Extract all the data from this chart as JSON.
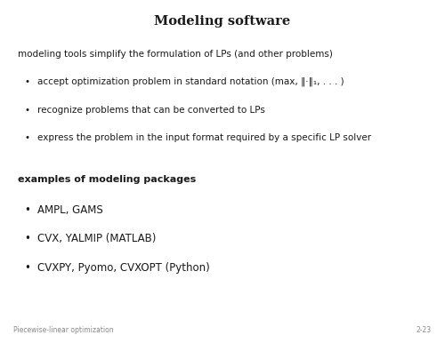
{
  "title": "Modeling software",
  "background_color": "#ffffff",
  "text_color": "#1a1a1a",
  "intro_line": "modeling tools simplify the formulation of LPs (and other problems)",
  "bullets_1": [
    "accept optimization problem in standard notation (max, ‖·‖₁, . . . )",
    "recognize problems that can be converted to LPs",
    "express the problem in the input format required by a specific LP solver"
  ],
  "section_header": "examples of modeling packages",
  "bullets_2": [
    "AMPL, GAMS",
    "CVX, YALMIP (MATLAB)",
    "CVXPY, Pyomo, CVXOPT (Python)"
  ],
  "footer_left": "Piecewise-linear optimization",
  "footer_right": "2-23",
  "title_fontsize": 10.5,
  "body_fontsize": 7.5,
  "bullet_fontsize": 7.5,
  "bullet2_fontsize": 8.5,
  "header_fontsize": 8.0,
  "footer_fontsize": 5.5,
  "text_color_footer": "#888888"
}
